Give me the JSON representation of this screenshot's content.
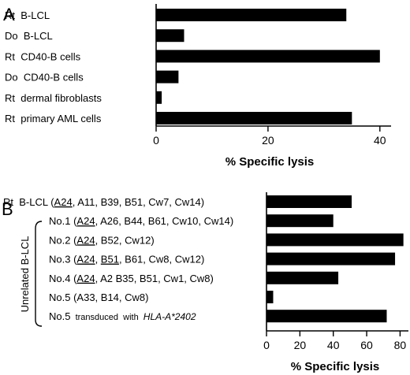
{
  "chart_data": [
    {
      "panel": "A",
      "type": "bar",
      "orientation": "horizontal",
      "categories": [
        "Rt  B-LCL",
        "Do  B-LCL",
        "Rt  CD40-B cells",
        "Do  CD40-B cells",
        "Rt  dermal fibroblasts",
        "Rt  primary AML cells"
      ],
      "values": [
        34,
        5,
        40,
        4,
        1,
        35
      ],
      "xlabel": "% Specific lysis",
      "xlim": [
        0,
        42
      ],
      "xticks": [
        0,
        20,
        40
      ],
      "grid": false
    },
    {
      "panel": "B",
      "type": "bar",
      "orientation": "horizontal",
      "group_label": "Unrelated B-LCL",
      "categories": [
        {
          "name": "Rt  B-LCL",
          "hla": [
            "A24",
            ", A11, B39, B51, Cw7, Cw14"
          ],
          "underlined": [
            "A24"
          ]
        },
        {
          "name": "No.1",
          "hla": [
            "A24",
            ", A26, B44, B61, Cw10, Cw14"
          ],
          "underlined": [
            "A24"
          ]
        },
        {
          "name": "No.2",
          "hla": [
            "A24",
            ", B52, Cw12"
          ],
          "underlined": [
            "A24"
          ]
        },
        {
          "name": "No.3",
          "hla": [
            "A24",
            ", ",
            "B51",
            ", B61, Cw8, Cw12"
          ],
          "underlined": [
            "A24",
            "B51"
          ]
        },
        {
          "name": "No.4",
          "hla": [
            "A24",
            ", A2 B35, B51, Cw1, Cw8"
          ],
          "underlined": [
            "A24"
          ]
        },
        {
          "name": "No.5",
          "hla": [
            "A33, B14, Cw8"
          ],
          "underlined": []
        },
        {
          "name": "No.5",
          "transduced": "transduced  with",
          "gene": "HLA-A*2402"
        }
      ],
      "values": [
        51,
        40,
        82,
        77,
        43,
        4,
        72
      ],
      "xlabel": "% Specific lysis",
      "xlim": [
        0,
        85
      ],
      "xticks": [
        0,
        20,
        40,
        60,
        80
      ],
      "grid": false
    }
  ],
  "panel_letters": [
    "A",
    "B"
  ]
}
